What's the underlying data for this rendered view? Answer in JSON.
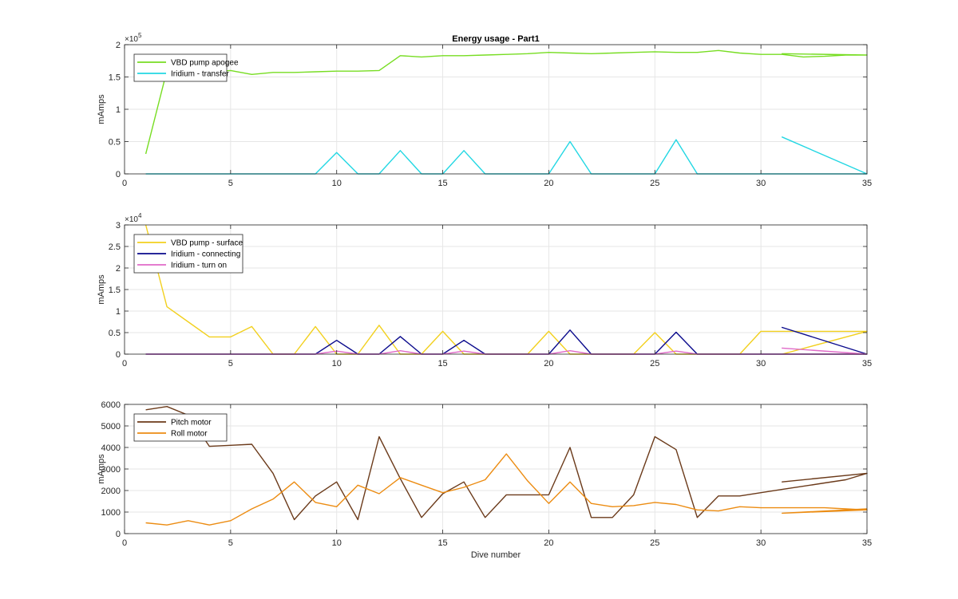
{
  "chart_data": [
    {
      "type": "line",
      "title": "Energy usage - Part1",
      "xlabel": "",
      "ylabel": "mAmps",
      "xlim": [
        0,
        35
      ],
      "ylim": [
        0,
        200000
      ],
      "yticks": [
        0,
        50000,
        100000,
        150000,
        200000
      ],
      "yticklabels": [
        "0",
        "0.5",
        "1",
        "1.5",
        "2"
      ],
      "y_multiplier": {
        "base": "×10",
        "exp": "5"
      },
      "xticks": [
        0,
        5,
        10,
        15,
        20,
        25,
        30,
        35
      ],
      "grid": true,
      "legend_position": "top-left",
      "series": [
        {
          "name": "VBD pump apogee",
          "color": "#77dd22",
          "x": [
            1,
            2,
            3,
            4,
            5,
            6,
            7,
            8,
            9,
            10,
            11,
            12,
            13,
            14,
            15,
            16,
            17,
            18,
            19,
            20,
            21,
            22,
            23,
            24,
            25,
            26,
            27,
            28,
            29,
            30,
            31,
            32,
            33,
            34,
            35,
            31,
            35
          ],
          "y": [
            31000,
            160000,
            160000,
            158000,
            160000,
            154000,
            157000,
            157000,
            158000,
            159000,
            159000,
            160000,
            183000,
            181000,
            183000,
            183000,
            184000,
            185000,
            186000,
            188000,
            187000,
            186000,
            187000,
            188000,
            189000,
            188000,
            188000,
            191000,
            187000,
            185000,
            185000,
            181000,
            182000,
            184000,
            184000,
            186000,
            184000
          ]
        },
        {
          "name": "Iridium - transfer",
          "color": "#22d7e3",
          "x": [
            1,
            2,
            3,
            4,
            5,
            6,
            7,
            8,
            9,
            10,
            11,
            12,
            13,
            14,
            15,
            16,
            17,
            18,
            19,
            20,
            21,
            22,
            23,
            24,
            25,
            26,
            27,
            28,
            29,
            30,
            31,
            32,
            33,
            34,
            35,
            31,
            35
          ],
          "y": [
            0,
            0,
            0,
            0,
            0,
            0,
            0,
            0,
            0,
            33000,
            0,
            0,
            36000,
            0,
            0,
            36000,
            0,
            0,
            0,
            0,
            50000,
            0,
            0,
            0,
            0,
            53000,
            0,
            0,
            0,
            0,
            0,
            0,
            0,
            0,
            0,
            57000,
            0
          ]
        }
      ]
    },
    {
      "type": "line",
      "title": "",
      "xlabel": "",
      "ylabel": "mAmps",
      "xlim": [
        0,
        35
      ],
      "ylim": [
        0,
        30000
      ],
      "yticks": [
        0,
        5000,
        10000,
        15000,
        20000,
        25000,
        30000
      ],
      "yticklabels": [
        "0",
        "0.5",
        "1",
        "1.5",
        "2",
        "2.5",
        "3"
      ],
      "y_multiplier": {
        "base": "×10",
        "exp": "4"
      },
      "xticks": [
        0,
        5,
        10,
        15,
        20,
        25,
        30,
        35
      ],
      "grid": true,
      "legend_position": "top-left",
      "series": [
        {
          "name": "VBD pump - surface",
          "color": "#f2d01e",
          "x": [
            1,
            2,
            3,
            4,
            5,
            6,
            7,
            8,
            9,
            10,
            11,
            12,
            13,
            14,
            15,
            16,
            17,
            18,
            19,
            20,
            21,
            22,
            23,
            24,
            25,
            26,
            27,
            28,
            29,
            30,
            31,
            32,
            33,
            34,
            35,
            31,
            35
          ],
          "y": [
            30000,
            11000,
            7500,
            4000,
            4000,
            6400,
            0,
            0,
            6400,
            0,
            0,
            6700,
            0,
            0,
            5300,
            0,
            0,
            0,
            0,
            5300,
            0,
            0,
            0,
            0,
            5000,
            0,
            0,
            0,
            0,
            5300,
            5300,
            5300,
            5300,
            5300,
            5300,
            0,
            5300
          ]
        },
        {
          "name": "Iridium - connecting",
          "color": "#0a0a8c",
          "x": [
            1,
            2,
            3,
            4,
            5,
            6,
            7,
            8,
            9,
            10,
            11,
            12,
            13,
            14,
            15,
            16,
            17,
            18,
            19,
            20,
            21,
            22,
            23,
            24,
            25,
            26,
            27,
            28,
            29,
            30,
            31,
            32,
            33,
            34,
            35,
            31,
            35
          ],
          "y": [
            0,
            0,
            0,
            0,
            0,
            0,
            0,
            0,
            0,
            3200,
            0,
            0,
            4100,
            0,
            0,
            3200,
            0,
            0,
            0,
            0,
            5600,
            0,
            0,
            0,
            0,
            5100,
            0,
            0,
            0,
            0,
            0,
            0,
            0,
            0,
            0,
            6200,
            0
          ]
        },
        {
          "name": "Iridium - turn on",
          "color": "#e06ac8",
          "x": [
            1,
            2,
            3,
            4,
            5,
            6,
            7,
            8,
            9,
            10,
            11,
            12,
            13,
            14,
            15,
            16,
            17,
            18,
            19,
            20,
            21,
            22,
            23,
            24,
            25,
            26,
            27,
            28,
            29,
            30,
            31,
            32,
            33,
            34,
            35,
            31,
            35
          ],
          "y": [
            0,
            0,
            0,
            0,
            0,
            0,
            0,
            0,
            0,
            700,
            0,
            0,
            800,
            0,
            0,
            700,
            0,
            0,
            0,
            0,
            800,
            0,
            0,
            0,
            0,
            700,
            0,
            0,
            0,
            0,
            0,
            0,
            0,
            0,
            0,
            1400,
            0
          ]
        }
      ]
    },
    {
      "type": "line",
      "title": "",
      "xlabel": "Dive number",
      "ylabel": "mAmps",
      "xlim": [
        0,
        35
      ],
      "ylim": [
        0,
        6000
      ],
      "yticks": [
        0,
        1000,
        2000,
        3000,
        4000,
        5000,
        6000
      ],
      "yticklabels": [
        "0",
        "1000",
        "2000",
        "3000",
        "4000",
        "5000",
        "6000"
      ],
      "xticks": [
        0,
        5,
        10,
        15,
        20,
        25,
        30,
        35
      ],
      "grid": true,
      "legend_position": "top-left",
      "series": [
        {
          "name": "Pitch motor",
          "color": "#6b3a1a",
          "x": [
            1,
            2,
            3,
            4,
            5,
            6,
            7,
            8,
            9,
            10,
            11,
            12,
            13,
            14,
            15,
            16,
            17,
            18,
            19,
            20,
            21,
            22,
            23,
            24,
            25,
            26,
            27,
            28,
            29,
            30,
            31,
            32,
            33,
            34,
            35,
            31,
            35
          ],
          "y": [
            5750,
            5900,
            5500,
            4050,
            4100,
            4150,
            2800,
            650,
            1750,
            2400,
            650,
            4500,
            2550,
            750,
            1850,
            2400,
            750,
            1800,
            1800,
            1800,
            4000,
            750,
            750,
            1800,
            4500,
            3900,
            750,
            1750,
            1750,
            1900,
            2050,
            2200,
            2350,
            2500,
            2800,
            2400,
            2800
          ]
        },
        {
          "name": "Roll motor",
          "color": "#ec8c12",
          "x": [
            1,
            2,
            3,
            4,
            5,
            6,
            7,
            8,
            9,
            10,
            11,
            12,
            13,
            14,
            15,
            16,
            17,
            18,
            19,
            20,
            21,
            22,
            23,
            24,
            25,
            26,
            27,
            28,
            29,
            30,
            31,
            32,
            33,
            34,
            35,
            31,
            35
          ],
          "y": [
            500,
            400,
            600,
            400,
            600,
            1150,
            1600,
            2400,
            1450,
            1250,
            2250,
            1850,
            2600,
            2250,
            1900,
            2150,
            2500,
            3700,
            2450,
            1400,
            2400,
            1400,
            1250,
            1300,
            1450,
            1350,
            1100,
            1050,
            1250,
            1200,
            1200,
            1200,
            1200,
            1150,
            1100,
            950,
            1150
          ]
        }
      ]
    }
  ]
}
